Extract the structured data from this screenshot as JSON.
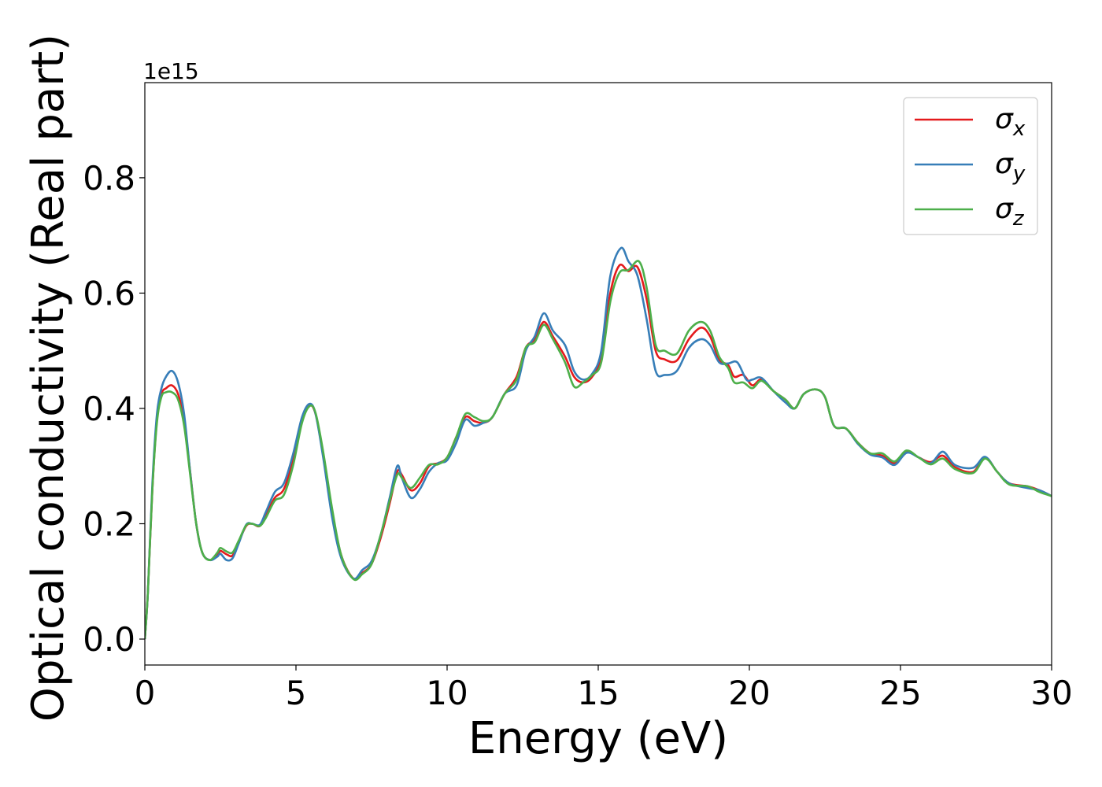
{
  "chart_data": {
    "type": "line",
    "xlabel": "Energy (eV)",
    "ylabel": "Optical conductivity (Real part)",
    "offset_label": "1e15",
    "xlim": [
      0,
      30
    ],
    "ylim": [
      -0.045,
      0.965
    ],
    "x_ticks": [
      0,
      5,
      10,
      15,
      20,
      25,
      30
    ],
    "y_ticks": [
      0.0,
      0.2,
      0.4,
      0.6,
      0.8
    ],
    "x_tick_labels": [
      "0",
      "5",
      "10",
      "15",
      "20",
      "25",
      "30"
    ],
    "y_tick_labels": [
      "0.0",
      "0.2",
      "0.4",
      "0.6",
      "0.8"
    ],
    "grid": false,
    "legend": {
      "position": "top-right",
      "entries": [
        "σx",
        "σy",
        "σz"
      ]
    },
    "series": [
      {
        "name": "σx",
        "color": "#e41a1c",
        "points": [
          [
            0,
            0.0
          ],
          [
            0.1,
            0.08
          ],
          [
            0.25,
            0.26
          ],
          [
            0.4,
            0.38
          ],
          [
            0.55,
            0.425
          ],
          [
            0.7,
            0.435
          ],
          [
            0.9,
            0.44
          ],
          [
            1.1,
            0.425
          ],
          [
            1.3,
            0.38
          ],
          [
            1.5,
            0.29
          ],
          [
            1.7,
            0.2
          ],
          [
            1.9,
            0.15
          ],
          [
            2.15,
            0.137
          ],
          [
            2.4,
            0.145
          ],
          [
            2.5,
            0.153
          ],
          [
            2.7,
            0.147
          ],
          [
            2.9,
            0.145
          ],
          [
            3.1,
            0.168
          ],
          [
            3.35,
            0.196
          ],
          [
            3.55,
            0.2
          ],
          [
            3.8,
            0.196
          ],
          [
            4.0,
            0.215
          ],
          [
            4.3,
            0.245
          ],
          [
            4.6,
            0.26
          ],
          [
            4.9,
            0.31
          ],
          [
            5.2,
            0.38
          ],
          [
            5.45,
            0.405
          ],
          [
            5.65,
            0.39
          ],
          [
            5.9,
            0.32
          ],
          [
            6.2,
            0.22
          ],
          [
            6.5,
            0.145
          ],
          [
            6.9,
            0.105
          ],
          [
            7.2,
            0.115
          ],
          [
            7.5,
            0.13
          ],
          [
            7.8,
            0.175
          ],
          [
            8.1,
            0.235
          ],
          [
            8.35,
            0.29
          ],
          [
            8.5,
            0.285
          ],
          [
            8.8,
            0.258
          ],
          [
            9.1,
            0.27
          ],
          [
            9.4,
            0.3
          ],
          [
            9.7,
            0.305
          ],
          [
            10.0,
            0.315
          ],
          [
            10.3,
            0.35
          ],
          [
            10.6,
            0.385
          ],
          [
            10.9,
            0.378
          ],
          [
            11.2,
            0.375
          ],
          [
            11.5,
            0.385
          ],
          [
            11.9,
            0.425
          ],
          [
            12.3,
            0.455
          ],
          [
            12.6,
            0.505
          ],
          [
            12.9,
            0.52
          ],
          [
            13.2,
            0.55
          ],
          [
            13.5,
            0.525
          ],
          [
            13.9,
            0.49
          ],
          [
            14.2,
            0.455
          ],
          [
            14.5,
            0.445
          ],
          [
            14.8,
            0.455
          ],
          [
            15.1,
            0.49
          ],
          [
            15.4,
            0.6
          ],
          [
            15.7,
            0.648
          ],
          [
            16.0,
            0.638
          ],
          [
            16.3,
            0.645
          ],
          [
            16.6,
            0.59
          ],
          [
            16.9,
            0.5
          ],
          [
            17.2,
            0.485
          ],
          [
            17.6,
            0.483
          ],
          [
            18.0,
            0.52
          ],
          [
            18.4,
            0.54
          ],
          [
            18.7,
            0.525
          ],
          [
            19.0,
            0.485
          ],
          [
            19.3,
            0.475
          ],
          [
            19.5,
            0.455
          ],
          [
            19.8,
            0.458
          ],
          [
            20.1,
            0.44
          ],
          [
            20.4,
            0.45
          ],
          [
            20.8,
            0.43
          ],
          [
            21.2,
            0.415
          ],
          [
            21.5,
            0.4
          ],
          [
            21.8,
            0.425
          ],
          [
            22.2,
            0.433
          ],
          [
            22.5,
            0.42
          ],
          [
            22.8,
            0.37
          ],
          [
            23.2,
            0.365
          ],
          [
            23.6,
            0.34
          ],
          [
            24.0,
            0.322
          ],
          [
            24.4,
            0.318
          ],
          [
            24.8,
            0.305
          ],
          [
            25.2,
            0.325
          ],
          [
            25.6,
            0.315
          ],
          [
            26.0,
            0.307
          ],
          [
            26.4,
            0.318
          ],
          [
            26.8,
            0.298
          ],
          [
            27.4,
            0.29
          ],
          [
            27.8,
            0.315
          ],
          [
            28.2,
            0.29
          ],
          [
            28.6,
            0.27
          ],
          [
            29.2,
            0.265
          ],
          [
            29.6,
            0.258
          ],
          [
            30.0,
            0.248
          ]
        ]
      },
      {
        "name": "σy",
        "color": "#377eb8",
        "points": [
          [
            0,
            0.0
          ],
          [
            0.1,
            0.08
          ],
          [
            0.25,
            0.27
          ],
          [
            0.4,
            0.39
          ],
          [
            0.55,
            0.435
          ],
          [
            0.7,
            0.455
          ],
          [
            0.9,
            0.465
          ],
          [
            1.1,
            0.445
          ],
          [
            1.3,
            0.39
          ],
          [
            1.5,
            0.29
          ],
          [
            1.7,
            0.2
          ],
          [
            1.9,
            0.15
          ],
          [
            2.15,
            0.137
          ],
          [
            2.4,
            0.143
          ],
          [
            2.5,
            0.148
          ],
          [
            2.7,
            0.137
          ],
          [
            2.9,
            0.14
          ],
          [
            3.1,
            0.165
          ],
          [
            3.35,
            0.198
          ],
          [
            3.55,
            0.2
          ],
          [
            3.8,
            0.198
          ],
          [
            4.0,
            0.22
          ],
          [
            4.3,
            0.255
          ],
          [
            4.6,
            0.27
          ],
          [
            4.9,
            0.32
          ],
          [
            5.2,
            0.385
          ],
          [
            5.45,
            0.408
          ],
          [
            5.65,
            0.39
          ],
          [
            5.9,
            0.315
          ],
          [
            6.2,
            0.21
          ],
          [
            6.5,
            0.14
          ],
          [
            6.9,
            0.105
          ],
          [
            7.2,
            0.12
          ],
          [
            7.5,
            0.135
          ],
          [
            7.8,
            0.18
          ],
          [
            8.1,
            0.245
          ],
          [
            8.35,
            0.3
          ],
          [
            8.5,
            0.28
          ],
          [
            8.8,
            0.245
          ],
          [
            9.1,
            0.26
          ],
          [
            9.4,
            0.29
          ],
          [
            9.7,
            0.305
          ],
          [
            10.0,
            0.31
          ],
          [
            10.3,
            0.34
          ],
          [
            10.6,
            0.38
          ],
          [
            10.9,
            0.37
          ],
          [
            11.2,
            0.375
          ],
          [
            11.5,
            0.385
          ],
          [
            11.9,
            0.425
          ],
          [
            12.3,
            0.44
          ],
          [
            12.6,
            0.5
          ],
          [
            12.9,
            0.525
          ],
          [
            13.2,
            0.565
          ],
          [
            13.5,
            0.535
          ],
          [
            13.9,
            0.51
          ],
          [
            14.2,
            0.465
          ],
          [
            14.5,
            0.45
          ],
          [
            14.8,
            0.46
          ],
          [
            15.1,
            0.5
          ],
          [
            15.4,
            0.63
          ],
          [
            15.75,
            0.678
          ],
          [
            16.0,
            0.655
          ],
          [
            16.3,
            0.63
          ],
          [
            16.6,
            0.555
          ],
          [
            16.9,
            0.465
          ],
          [
            17.2,
            0.458
          ],
          [
            17.6,
            0.465
          ],
          [
            18.0,
            0.505
          ],
          [
            18.4,
            0.52
          ],
          [
            18.7,
            0.51
          ],
          [
            19.0,
            0.48
          ],
          [
            19.3,
            0.478
          ],
          [
            19.6,
            0.48
          ],
          [
            19.9,
            0.45
          ],
          [
            20.1,
            0.45
          ],
          [
            20.4,
            0.453
          ],
          [
            20.8,
            0.43
          ],
          [
            21.2,
            0.41
          ],
          [
            21.5,
            0.4
          ],
          [
            21.8,
            0.425
          ],
          [
            22.2,
            0.433
          ],
          [
            22.5,
            0.42
          ],
          [
            22.8,
            0.37
          ],
          [
            23.2,
            0.365
          ],
          [
            23.6,
            0.338
          ],
          [
            24.0,
            0.32
          ],
          [
            24.4,
            0.315
          ],
          [
            24.8,
            0.302
          ],
          [
            25.2,
            0.323
          ],
          [
            25.6,
            0.315
          ],
          [
            26.0,
            0.305
          ],
          [
            26.4,
            0.325
          ],
          [
            26.8,
            0.302
          ],
          [
            27.4,
            0.297
          ],
          [
            27.8,
            0.316
          ],
          [
            28.2,
            0.29
          ],
          [
            28.6,
            0.27
          ],
          [
            29.2,
            0.262
          ],
          [
            29.6,
            0.258
          ],
          [
            30.0,
            0.248
          ]
        ]
      },
      {
        "name": "σz",
        "color": "#4daf4a",
        "points": [
          [
            0,
            0.0
          ],
          [
            0.1,
            0.08
          ],
          [
            0.25,
            0.26
          ],
          [
            0.4,
            0.375
          ],
          [
            0.55,
            0.42
          ],
          [
            0.7,
            0.428
          ],
          [
            0.9,
            0.428
          ],
          [
            1.1,
            0.415
          ],
          [
            1.3,
            0.37
          ],
          [
            1.5,
            0.285
          ],
          [
            1.7,
            0.2
          ],
          [
            1.9,
            0.15
          ],
          [
            2.15,
            0.137
          ],
          [
            2.4,
            0.15
          ],
          [
            2.5,
            0.158
          ],
          [
            2.7,
            0.152
          ],
          [
            2.9,
            0.15
          ],
          [
            3.1,
            0.17
          ],
          [
            3.35,
            0.197
          ],
          [
            3.55,
            0.2
          ],
          [
            3.8,
            0.196
          ],
          [
            4.0,
            0.21
          ],
          [
            4.3,
            0.24
          ],
          [
            4.6,
            0.25
          ],
          [
            4.9,
            0.3
          ],
          [
            5.2,
            0.375
          ],
          [
            5.45,
            0.404
          ],
          [
            5.65,
            0.392
          ],
          [
            5.9,
            0.325
          ],
          [
            6.2,
            0.225
          ],
          [
            6.5,
            0.145
          ],
          [
            6.9,
            0.104
          ],
          [
            7.2,
            0.113
          ],
          [
            7.5,
            0.13
          ],
          [
            7.8,
            0.18
          ],
          [
            8.1,
            0.24
          ],
          [
            8.35,
            0.285
          ],
          [
            8.5,
            0.28
          ],
          [
            8.8,
            0.262
          ],
          [
            9.1,
            0.28
          ],
          [
            9.4,
            0.302
          ],
          [
            9.7,
            0.303
          ],
          [
            10.0,
            0.315
          ],
          [
            10.3,
            0.35
          ],
          [
            10.6,
            0.39
          ],
          [
            10.9,
            0.385
          ],
          [
            11.2,
            0.378
          ],
          [
            11.5,
            0.385
          ],
          [
            11.9,
            0.425
          ],
          [
            12.3,
            0.45
          ],
          [
            12.6,
            0.505
          ],
          [
            12.9,
            0.515
          ],
          [
            13.2,
            0.545
          ],
          [
            13.5,
            0.52
          ],
          [
            13.9,
            0.48
          ],
          [
            14.2,
            0.438
          ],
          [
            14.5,
            0.445
          ],
          [
            14.8,
            0.458
          ],
          [
            15.1,
            0.48
          ],
          [
            15.4,
            0.585
          ],
          [
            15.7,
            0.635
          ],
          [
            16.0,
            0.64
          ],
          [
            16.35,
            0.655
          ],
          [
            16.6,
            0.61
          ],
          [
            16.9,
            0.51
          ],
          [
            17.2,
            0.5
          ],
          [
            17.6,
            0.495
          ],
          [
            18.0,
            0.535
          ],
          [
            18.4,
            0.55
          ],
          [
            18.7,
            0.535
          ],
          [
            19.0,
            0.49
          ],
          [
            19.3,
            0.47
          ],
          [
            19.5,
            0.445
          ],
          [
            19.8,
            0.445
          ],
          [
            20.1,
            0.435
          ],
          [
            20.4,
            0.448
          ],
          [
            20.8,
            0.43
          ],
          [
            21.2,
            0.415
          ],
          [
            21.5,
            0.4
          ],
          [
            21.8,
            0.425
          ],
          [
            22.2,
            0.433
          ],
          [
            22.5,
            0.42
          ],
          [
            22.8,
            0.37
          ],
          [
            23.2,
            0.365
          ],
          [
            23.6,
            0.34
          ],
          [
            24.0,
            0.322
          ],
          [
            24.4,
            0.322
          ],
          [
            24.8,
            0.308
          ],
          [
            25.2,
            0.327
          ],
          [
            25.6,
            0.315
          ],
          [
            26.0,
            0.303
          ],
          [
            26.4,
            0.313
          ],
          [
            26.8,
            0.295
          ],
          [
            27.4,
            0.288
          ],
          [
            27.8,
            0.313
          ],
          [
            28.2,
            0.29
          ],
          [
            28.6,
            0.268
          ],
          [
            29.2,
            0.265
          ],
          [
            29.6,
            0.255
          ],
          [
            30.0,
            0.248
          ]
        ]
      }
    ]
  }
}
